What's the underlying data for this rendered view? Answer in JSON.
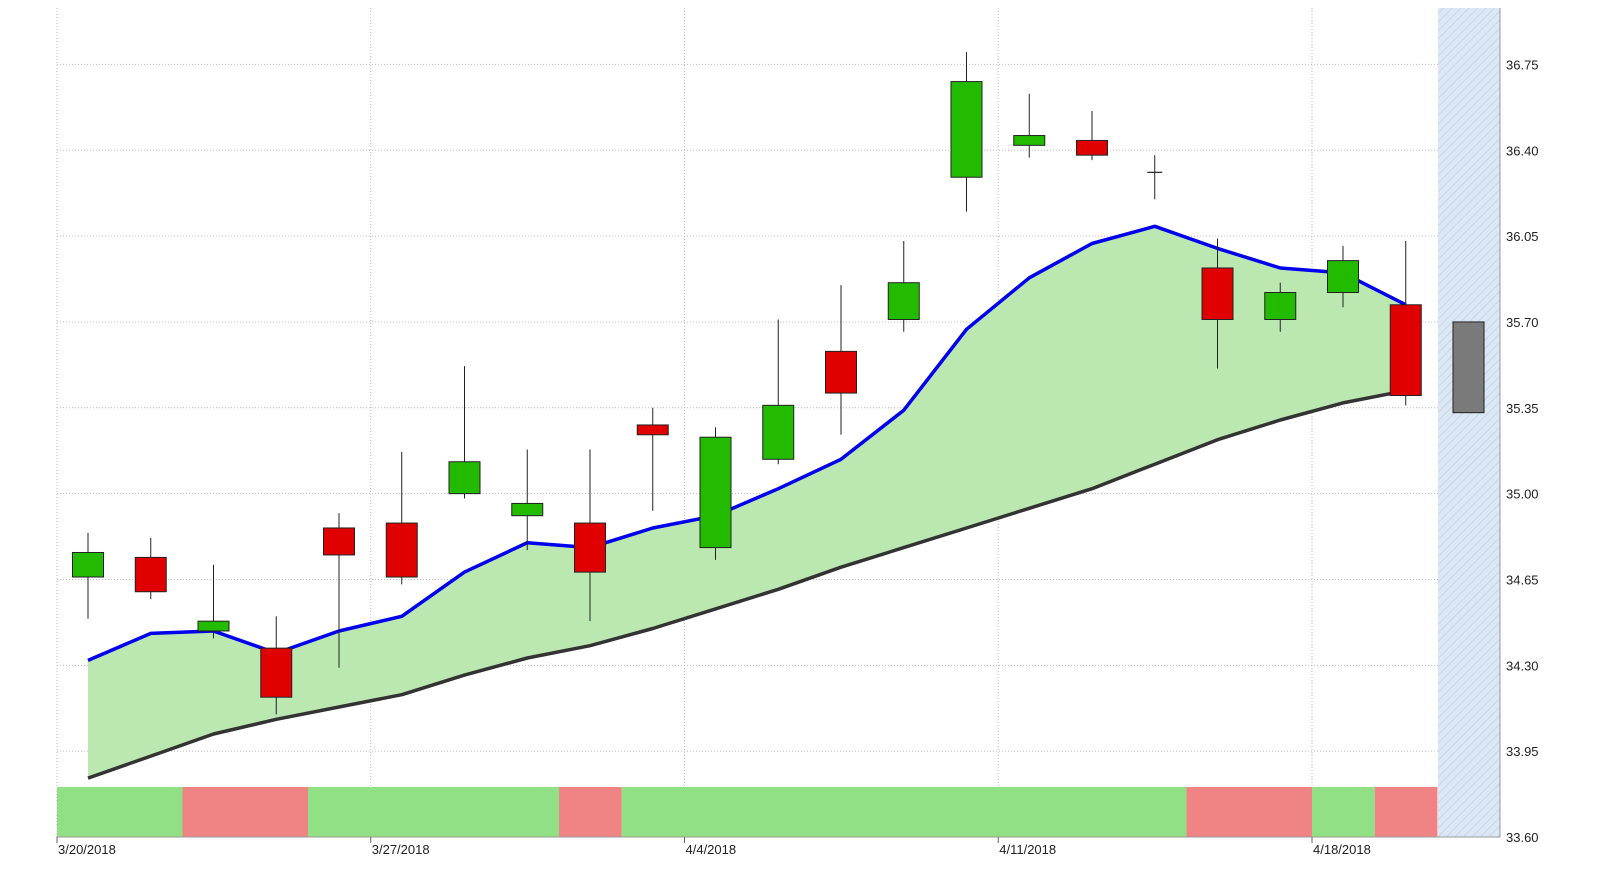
{
  "chart_data": {
    "type": "candlestick",
    "title": "",
    "xlabel": "",
    "ylabel": "",
    "ylim": [
      33.6,
      36.98
    ],
    "y_ticks": [
      "36.75",
      "36.40",
      "36.05",
      "35.70",
      "35.35",
      "35.00",
      "34.65",
      "34.30",
      "33.95",
      "33.60"
    ],
    "x_ticks": [
      {
        "label": "3/20/2018",
        "index": 0
      },
      {
        "label": "3/27/2018",
        "index": 5
      },
      {
        "label": "4/4/2018",
        "index": 10
      },
      {
        "label": "4/11/2018",
        "index": 15
      },
      {
        "label": "4/18/2018",
        "index": 20
      }
    ],
    "grid": true,
    "candles": [
      {
        "open": 34.66,
        "high": 34.84,
        "low": 34.49,
        "close": 34.76
      },
      {
        "open": 34.74,
        "high": 34.82,
        "low": 34.57,
        "close": 34.6
      },
      {
        "open": 34.44,
        "high": 34.71,
        "low": 34.41,
        "close": 34.48
      },
      {
        "open": 34.37,
        "high": 34.5,
        "low": 34.1,
        "close": 34.17
      },
      {
        "open": 34.86,
        "high": 34.92,
        "low": 34.29,
        "close": 34.75
      },
      {
        "open": 34.88,
        "high": 35.17,
        "low": 34.63,
        "close": 34.66
      },
      {
        "open": 35.0,
        "high": 35.52,
        "low": 34.98,
        "close": 35.13
      },
      {
        "open": 34.91,
        "high": 35.18,
        "low": 34.77,
        "close": 34.96
      },
      {
        "open": 34.88,
        "high": 35.18,
        "low": 34.48,
        "close": 34.68
      },
      {
        "open": 35.28,
        "high": 35.35,
        "low": 34.93,
        "close": 35.24
      },
      {
        "open": 34.78,
        "high": 35.27,
        "low": 34.73,
        "close": 35.23
      },
      {
        "open": 35.14,
        "high": 35.71,
        "low": 35.12,
        "close": 35.36
      },
      {
        "open": 35.58,
        "high": 35.85,
        "low": 35.24,
        "close": 35.41
      },
      {
        "open": 35.71,
        "high": 36.03,
        "low": 35.66,
        "close": 35.86
      },
      {
        "open": 36.29,
        "high": 36.8,
        "low": 36.15,
        "close": 36.68
      },
      {
        "open": 36.42,
        "high": 36.63,
        "low": 36.37,
        "close": 36.46
      },
      {
        "open": 36.44,
        "high": 36.56,
        "low": 36.36,
        "close": 36.38
      },
      {
        "open": 36.31,
        "high": 36.38,
        "low": 36.2,
        "close": 36.31
      },
      {
        "open": 35.92,
        "high": 36.04,
        "low": 35.51,
        "close": 35.71
      },
      {
        "open": 35.71,
        "high": 35.86,
        "low": 35.66,
        "close": 35.82
      },
      {
        "open": 35.82,
        "high": 36.01,
        "low": 35.76,
        "close": 35.95
      },
      {
        "open": 35.77,
        "high": 36.03,
        "low": 35.36,
        "close": 35.4
      },
      {
        "open": 35.7,
        "high": 35.7,
        "low": 35.33,
        "close": 35.33,
        "projected": true
      }
    ],
    "series": [
      {
        "values": [
          34.32,
          34.43,
          34.44,
          34.35,
          34.44,
          34.5,
          34.68,
          34.8,
          34.78,
          34.86,
          34.91,
          35.02,
          35.14,
          35.34,
          35.67,
          35.88,
          36.02,
          36.09,
          36.0,
          35.92,
          35.9,
          35.77
        ]
      },
      {
        "values": [
          33.84,
          33.93,
          34.02,
          34.08,
          34.13,
          34.18,
          34.26,
          34.33,
          34.38,
          34.45,
          34.53,
          34.61,
          34.7,
          34.78,
          34.86,
          34.94,
          35.02,
          35.12,
          35.22,
          35.3,
          35.37,
          35.42
        ]
      }
    ],
    "band": [
      {
        "count": 2,
        "state": "up"
      },
      {
        "count": 2,
        "state": "down"
      },
      {
        "count": 4,
        "state": "up"
      },
      {
        "count": 1,
        "state": "down"
      },
      {
        "count": 9,
        "state": "up"
      },
      {
        "count": 2,
        "state": "down"
      },
      {
        "count": 1,
        "state": "up"
      },
      {
        "count": 1,
        "state": "down"
      }
    ],
    "colors": {
      "up_candle": "#22bb00",
      "down_candle": "#e00000",
      "projected_candle": "#7a7a7a",
      "upper_line": "#0000ee",
      "lower_line": "#333333",
      "band_fill": "#bbe8b0",
      "band_up": "#92e085",
      "band_down": "#f08484",
      "grid": "#bbbbbb",
      "projection_bg": "#dbe7f3"
    }
  }
}
